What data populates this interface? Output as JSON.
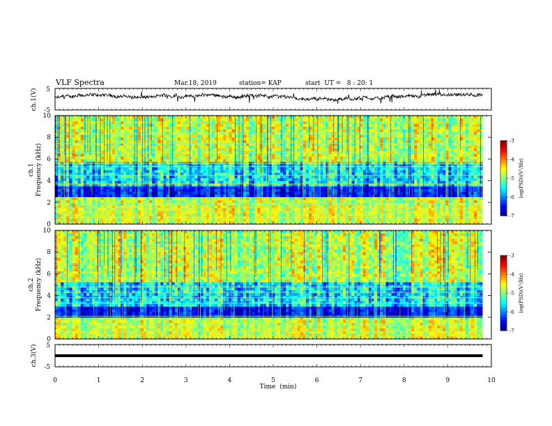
{
  "header": {
    "title": "VLF Spectra",
    "date": "Mar.18, 2019",
    "station": "station= KAP",
    "start": "start  UT =   8 : 20: 1"
  },
  "chart_data": [
    {
      "type": "line",
      "ylabel": "ch.1(V)",
      "yticks": [
        "5",
        "-5"
      ],
      "ylim": [
        -5,
        5
      ],
      "xlim": [
        0,
        10
      ],
      "x_end": 9.8,
      "series_shape": "noisy waveform around +0.5 V"
    },
    {
      "type": "heatmap",
      "ylabel_top": "ch.1",
      "ylabel": "Frequency (kHz)",
      "yticks": [
        "0",
        "2",
        "4",
        "6",
        "8",
        "10"
      ],
      "ylim": [
        0,
        10
      ],
      "xlim": [
        0,
        10
      ],
      "x_end": 9.8,
      "colorbar": {
        "label": "log(PSD)(V²/Hz)",
        "ticks": [
          "-3",
          "-4",
          "-5",
          "-6",
          "-7"
        ],
        "range": [
          -7,
          -3
        ]
      },
      "dark_band_khz": [
        2.6,
        3.5
      ],
      "bright_lines_khz": [
        0.3,
        0.6,
        1.1,
        1.5,
        1.9,
        2.2,
        2.45,
        3.7,
        4.5,
        5.3,
        5.6,
        6.6,
        7.4,
        8.3,
        9.4
      ]
    },
    {
      "type": "heatmap",
      "ylabel_top": "ch.2",
      "ylabel": "Frequency (kHz)",
      "yticks": [
        "0",
        "2",
        "4",
        "6",
        "8",
        "10"
      ],
      "ylim": [
        0,
        10
      ],
      "xlim": [
        0,
        10
      ],
      "x_end": 9.8,
      "colorbar": {
        "label": "log(PSD)(V²/Hz)",
        "ticks": [
          "-3",
          "-4",
          "-5",
          "-6",
          "-7"
        ],
        "range": [
          -7,
          -3
        ]
      },
      "dark_band_khz": [
        2.0,
        3.0
      ],
      "bright_lines_khz": [
        0.3,
        0.7,
        1.3,
        1.8,
        2.1,
        3.3,
        3.8,
        4.3,
        4.8,
        5.6,
        6.0,
        6.9,
        7.8,
        8.7
      ]
    },
    {
      "type": "line",
      "ylabel": "ch.3(V)",
      "yticks": [
        "5",
        "-5"
      ],
      "ylim": [
        -5,
        5
      ],
      "xlim": [
        0,
        10
      ],
      "x_end": 9.8,
      "values_constant": 0
    }
  ],
  "xaxis": {
    "label": "Time  (min)",
    "ticks": [
      "0",
      "1",
      "2",
      "3",
      "4",
      "5",
      "6",
      "7",
      "8",
      "9",
      "10"
    ]
  }
}
